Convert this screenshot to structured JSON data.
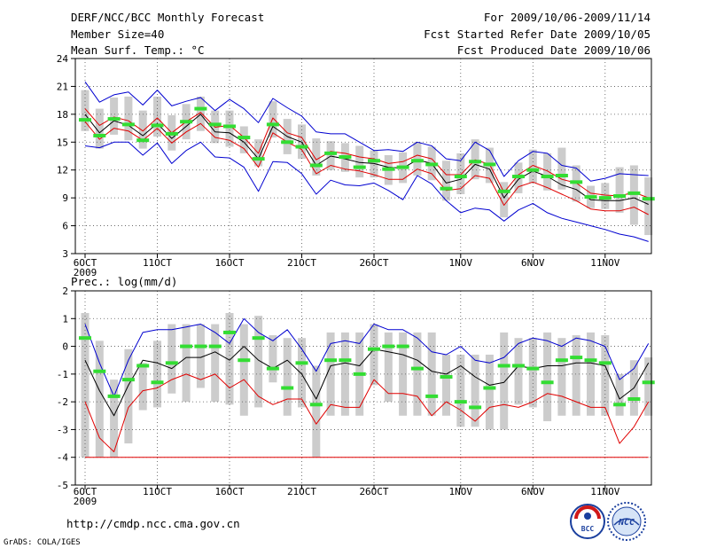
{
  "header": {
    "title": "DERF/NCC/BCC Monthly Forecast",
    "member_size": "Member Size=40",
    "variable": "Mean Surf. Temp.: °C",
    "period": "For 2009/10/06-2009/11/14",
    "started": "Fcst Started Refer Date 2009/10/05",
    "produced": "Fcst Produced Date 2009/10/06"
  },
  "footer": {
    "url": "http://cmdp.ncc.cma.gov.cn",
    "credit": "GrADS: COLA/IGES",
    "logo_bcc_text": "BCC",
    "logo_ncc_text": "NCC"
  },
  "colors": {
    "bar": "#cccccc",
    "mean": "#000000",
    "lower": "#e00000",
    "upper": "#0000d0",
    "green": "#33dd33",
    "grid": "#555555"
  },
  "chart_data": [
    {
      "type": "line",
      "title": "Mean Surf. Temp.: °C",
      "xlabel": "",
      "ylabel": "",
      "ylim": [
        3,
        24
      ],
      "yticks": [
        3,
        6,
        9,
        12,
        15,
        18,
        21,
        24
      ],
      "xticks": [
        {
          "day": 1,
          "label": "6OCT"
        },
        {
          "day": 6,
          "label": "11OCT"
        },
        {
          "day": 11,
          "label": "16OCT"
        },
        {
          "day": 16,
          "label": "21OCT"
        },
        {
          "day": 21,
          "label": "26OCT"
        },
        {
          "day": 27,
          "label": "1NOV"
        },
        {
          "day": 32,
          "label": "6NOV"
        },
        {
          "day": 37,
          "label": "11NOV"
        }
      ],
      "year_label": "2009",
      "x": [
        1,
        2,
        3,
        4,
        5,
        6,
        7,
        8,
        9,
        10,
        11,
        12,
        13,
        14,
        15,
        16,
        17,
        18,
        19,
        20,
        21,
        22,
        23,
        24,
        25,
        26,
        27,
        28,
        29,
        30,
        31,
        32,
        33,
        34,
        35,
        36,
        37,
        38,
        39,
        40
      ],
      "series": [
        {
          "name": "ensemble mean",
          "values": [
            18.0,
            16.0,
            17.3,
            16.8,
            15.7,
            17.0,
            15.4,
            16.7,
            18.0,
            16.1,
            16.0,
            15.0,
            13.2,
            16.7,
            15.6,
            15.0,
            12.5,
            13.5,
            13.2,
            12.8,
            12.7,
            12.3,
            12.2,
            13.1,
            12.7,
            10.6,
            11.0,
            12.6,
            12.1,
            9.0,
            11.0,
            11.9,
            11.3,
            10.4,
            9.9,
            8.8,
            8.7,
            8.7,
            9.0,
            8.3
          ]
        },
        {
          "name": "lower bound",
          "values": [
            17.2,
            15.3,
            16.5,
            16.2,
            15.2,
            16.5,
            14.9,
            16.1,
            17.0,
            15.5,
            15.2,
            14.3,
            12.3,
            16.0,
            15.0,
            14.2,
            11.6,
            12.5,
            12.1,
            11.9,
            11.5,
            11.0,
            11.0,
            12.1,
            11.6,
            9.8,
            10.0,
            11.4,
            11.1,
            8.2,
            10.2,
            10.7,
            10.1,
            9.4,
            8.7,
            7.8,
            7.6,
            7.6,
            8.0,
            7.2
          ]
        },
        {
          "name": "upper bound",
          "values": [
            18.6,
            16.8,
            17.7,
            17.3,
            16.2,
            17.6,
            16.0,
            17.2,
            18.2,
            16.6,
            16.8,
            15.5,
            13.8,
            17.6,
            16.0,
            15.5,
            13.1,
            14.0,
            13.8,
            13.4,
            13.2,
            12.7,
            12.9,
            13.6,
            13.2,
            11.5,
            11.5,
            13.1,
            12.6,
            9.6,
            11.5,
            12.5,
            11.9,
            11.0,
            10.6,
            9.5,
            9.3,
            9.2,
            9.6,
            9.0
          ]
        },
        {
          "name": "ensemble max",
          "values": [
            21.5,
            19.3,
            20.1,
            20.4,
            19.0,
            20.6,
            18.9,
            19.4,
            19.8,
            18.4,
            19.6,
            18.6,
            17.1,
            19.7,
            18.7,
            17.8,
            16.1,
            15.9,
            15.9,
            15.0,
            14.1,
            14.2,
            14.0,
            15.0,
            14.6,
            13.2,
            13.0,
            15.0,
            14.1,
            11.3,
            13.0,
            14.0,
            13.8,
            12.5,
            12.2,
            10.8,
            11.1,
            11.6,
            11.5,
            11.4
          ]
        },
        {
          "name": "ensemble min",
          "values": [
            14.6,
            14.4,
            15.0,
            15.0,
            13.6,
            14.9,
            12.7,
            14.1,
            15.0,
            13.4,
            13.3,
            12.3,
            9.7,
            12.9,
            12.8,
            11.6,
            9.4,
            10.9,
            10.4,
            10.3,
            10.6,
            9.8,
            8.8,
            11.4,
            10.5,
            8.7,
            7.4,
            7.9,
            7.7,
            6.5,
            7.7,
            8.4,
            7.4,
            6.8,
            6.4,
            6.0,
            5.6,
            5.1,
            4.8,
            4.3
          ]
        },
        {
          "name": "observation",
          "values": [
            17.4,
            15.7,
            17.5,
            16.9,
            15.2,
            16.8,
            15.9,
            17.2,
            18.6,
            16.9,
            16.7,
            15.5,
            13.2,
            16.9,
            15.0,
            14.5,
            12.5,
            13.8,
            13.4,
            12.3,
            13.0,
            12.1,
            12.3,
            13.0,
            12.6,
            10.0,
            11.3,
            12.9,
            12.6,
            9.7,
            11.3,
            12.0,
            11.3,
            11.4,
            10.7,
            9.1,
            9.0,
            9.2,
            9.5,
            8.9
          ]
        },
        {
          "name": "ensemble spread bar top",
          "values": [
            20.6,
            18.6,
            19.8,
            19.9,
            18.4,
            19.9,
            17.9,
            19.1,
            19.9,
            18.4,
            18.4,
            16.7,
            15.3,
            19.4,
            17.5,
            16.9,
            15.4,
            15.1,
            14.9,
            14.6,
            14.1,
            13.6,
            13.9,
            15.0,
            14.5,
            13.0,
            13.8,
            15.3,
            14.4,
            10.7,
            12.8,
            14.2,
            13.8,
            14.4,
            12.5,
            10.3,
            10.6,
            12.3,
            12.5,
            11.2
          ]
        },
        {
          "name": "ensemble spread bar bottom",
          "values": [
            16.2,
            14.3,
            15.8,
            15.2,
            14.3,
            15.6,
            14.1,
            15.3,
            16.2,
            14.9,
            14.5,
            13.8,
            12.4,
            15.5,
            13.7,
            13.2,
            11.4,
            12.0,
            11.8,
            11.2,
            11.2,
            10.4,
            10.6,
            11.4,
            10.9,
            8.7,
            9.4,
            11.0,
            10.6,
            6.9,
            9.5,
            10.6,
            9.8,
            9.9,
            8.6,
            7.9,
            7.8,
            7.4,
            6.1,
            5.0
          ]
        }
      ]
    },
    {
      "type": "line",
      "title": "Prec.: log(mm/d)",
      "xlabel": "",
      "ylabel": "",
      "ylim": [
        -5,
        2
      ],
      "yticks": [
        -5,
        -4,
        -3,
        -2,
        -1,
        0,
        1,
        2
      ],
      "xticks": [
        {
          "day": 1,
          "label": "6OCT"
        },
        {
          "day": 6,
          "label": "11OCT"
        },
        {
          "day": 11,
          "label": "16OCT"
        },
        {
          "day": 16,
          "label": "21OCT"
        },
        {
          "day": 21,
          "label": "26OCT"
        },
        {
          "day": 27,
          "label": "1NOV"
        },
        {
          "day": 32,
          "label": "6NOV"
        },
        {
          "day": 37,
          "label": "11NOV"
        }
      ],
      "year_label": "2009",
      "baseline": -4,
      "x": [
        1,
        2,
        3,
        4,
        5,
        6,
        7,
        8,
        9,
        10,
        11,
        12,
        13,
        14,
        15,
        16,
        17,
        18,
        19,
        20,
        21,
        22,
        23,
        24,
        25,
        26,
        27,
        28,
        29,
        30,
        31,
        32,
        33,
        34,
        35,
        36,
        37,
        38,
        39,
        40
      ],
      "series": [
        {
          "name": "ensemble mean",
          "values": [
            -0.5,
            -1.6,
            -2.5,
            -1.4,
            -0.5,
            -0.6,
            -0.8,
            -0.4,
            -0.4,
            -0.2,
            -0.5,
            0.0,
            -0.5,
            -0.8,
            -0.5,
            -1.0,
            -1.9,
            -0.7,
            -0.6,
            -0.7,
            -0.1,
            -0.2,
            -0.3,
            -0.5,
            -0.9,
            -1.0,
            -0.7,
            -1.1,
            -1.4,
            -1.3,
            -0.7,
            -0.8,
            -0.7,
            -0.7,
            -0.6,
            -0.6,
            -0.7,
            -1.9,
            -1.5,
            -0.6
          ]
        },
        {
          "name": "lower bound",
          "values": [
            -2.0,
            -3.3,
            -3.8,
            -2.2,
            -1.6,
            -1.5,
            -1.2,
            -1.0,
            -1.2,
            -1.0,
            -1.5,
            -1.2,
            -1.8,
            -2.1,
            -1.9,
            -1.9,
            -2.8,
            -2.1,
            -2.2,
            -2.2,
            -1.2,
            -1.7,
            -1.7,
            -1.8,
            -2.5,
            -2.0,
            -2.3,
            -2.7,
            -2.2,
            -2.1,
            -2.2,
            -2.0,
            -1.7,
            -1.8,
            -2.0,
            -2.2,
            -2.2,
            -3.5,
            -2.9,
            -2.0
          ]
        },
        {
          "name": "upper bound",
          "values": [
            0.8,
            -0.6,
            -1.8,
            -0.5,
            0.5,
            0.6,
            0.6,
            0.7,
            0.8,
            0.5,
            0.1,
            1.0,
            0.5,
            0.2,
            0.6,
            -0.1,
            -0.9,
            0.1,
            0.2,
            0.1,
            0.8,
            0.6,
            0.6,
            0.3,
            -0.2,
            -0.3,
            0.0,
            -0.5,
            -0.6,
            -0.4,
            0.1,
            0.3,
            0.2,
            0.0,
            0.3,
            0.2,
            0.0,
            -1.2,
            -0.8,
            0.1
          ]
        },
        {
          "name": "observation",
          "values": [
            0.3,
            -0.9,
            -1.8,
            -1.2,
            -0.7,
            -1.3,
            -0.6,
            0.0,
            0.0,
            0.0,
            0.5,
            -0.5,
            0.3,
            -0.8,
            -1.5,
            -0.6,
            -2.1,
            -0.5,
            -0.5,
            -1.0,
            -0.1,
            -0.0,
            -0.0,
            -0.8,
            -1.8,
            -1.1,
            -2.0,
            -2.2,
            -1.5,
            -0.7,
            -0.7,
            -0.8,
            -1.3,
            -0.5,
            -0.4,
            -0.5,
            -0.6,
            -2.1,
            -1.9,
            -1.3
          ]
        },
        {
          "name": "ensemble spread bar top",
          "values": [
            1.2,
            0.2,
            -1.2,
            -0.1,
            -0.6,
            0.2,
            0.8,
            0.8,
            0.8,
            0.8,
            1.2,
            0.8,
            1.1,
            0.4,
            0.3,
            0.3,
            -0.7,
            0.5,
            0.5,
            0.5,
            0.8,
            0.5,
            0.5,
            0.5,
            0.5,
            -0.3,
            -0.3,
            -0.3,
            -0.3,
            0.5,
            0.3,
            0.3,
            0.5,
            0.3,
            0.4,
            0.5,
            0.4,
            -1.0,
            -0.5,
            -0.4
          ]
        },
        {
          "name": "ensemble spread bar bottom",
          "values": [
            -4.0,
            -4.0,
            -4.0,
            -3.5,
            -2.3,
            -2.2,
            -1.7,
            -2.0,
            -1.5,
            -2.0,
            -2.1,
            -2.5,
            -2.2,
            -1.3,
            -2.5,
            -2.2,
            -4.0,
            -2.5,
            -2.5,
            -2.5,
            -1.4,
            -2.0,
            -2.5,
            -2.5,
            -2.5,
            -2.5,
            -2.9,
            -2.9,
            -3.0,
            -3.0,
            -2.1,
            -2.2,
            -2.7,
            -2.5,
            -2.5,
            -2.5,
            -2.5,
            -2.5,
            -2.5,
            -2.5
          ]
        }
      ]
    }
  ]
}
